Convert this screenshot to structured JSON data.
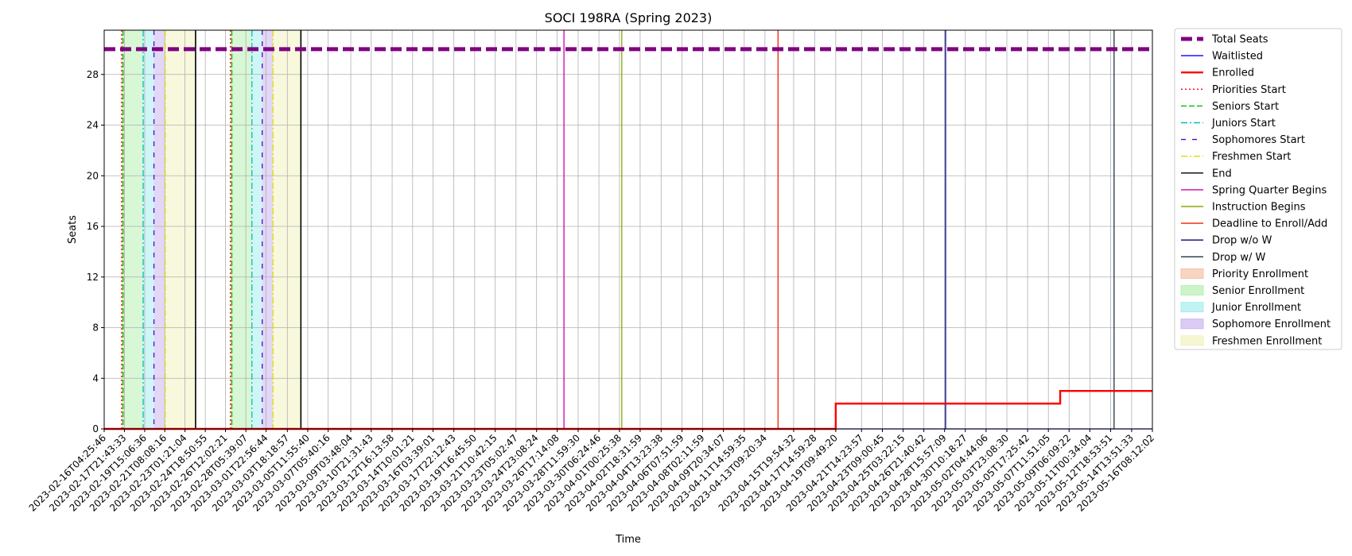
{
  "chart_data": {
    "type": "line",
    "title": "SOCI 198RA (Spring 2023)",
    "xlabel": "Time",
    "ylabel": "Seats",
    "ylim": [
      0,
      31.5
    ],
    "yticks": [
      0,
      4,
      8,
      12,
      16,
      20,
      24,
      28
    ],
    "grid": true,
    "legend_position": "outside right",
    "x_tick_labels": [
      "2023-02-16T04:25:46",
      "2023-02-17T21:43:33",
      "2023-02-19T15:06:36",
      "2023-02-21T08:08:16",
      "2023-02-23T01:21:04",
      "2023-02-24T18:50:55",
      "2023-02-26T12:02:21",
      "2023-02-28T05:39:07",
      "2023-03-01T22:56:44",
      "2023-03-03T18:18:57",
      "2023-03-05T11:55:40",
      "2023-03-07T05:40:16",
      "2023-03-09T03:48:04",
      "2023-03-10T21:31:43",
      "2023-03-12T16:13:58",
      "2023-03-14T10:01:21",
      "2023-03-16T03:39:01",
      "2023-03-17T22:12:43",
      "2023-03-19T16:45:50",
      "2023-03-21T10:42:15",
      "2023-03-23T05:02:47",
      "2023-03-24T23:08:24",
      "2023-03-26T17:14:08",
      "2023-03-28T11:59:30",
      "2023-03-30T06:24:46",
      "2023-04-01T00:25:38",
      "2023-04-02T18:31:59",
      "2023-04-04T13:23:38",
      "2023-04-06T07:51:59",
      "2023-04-08T02:11:59",
      "2023-04-09T20:34:07",
      "2023-04-11T14:59:35",
      "2023-04-13T09:20:34",
      "2023-04-15T19:54:32",
      "2023-04-17T14:59:28",
      "2023-04-19T09:49:20",
      "2023-04-21T14:23:57",
      "2023-04-23T09:00:45",
      "2023-04-25T03:22:15",
      "2023-04-26T21:40:42",
      "2023-04-28T15:57:09",
      "2023-04-30T10:18:27",
      "2023-05-02T04:44:06",
      "2023-05-03T23:08:30",
      "2023-05-05T17:25:42",
      "2023-05-07T11:51:05",
      "2023-05-09T06:09:22",
      "2023-05-11T00:34:04",
      "2023-05-12T18:53:51",
      "2023-05-14T13:51:33",
      "2023-05-16T08:12:02"
    ],
    "series": [
      {
        "name": "Total Seats",
        "color": "#800080",
        "style": "dashed-thick",
        "points": [
          [
            "2023-02-16T04:25:46",
            30
          ],
          [
            "2023-05-16T08:12:02",
            30
          ]
        ]
      },
      {
        "name": "Waitlisted",
        "color": "#0000ff",
        "style": "solid",
        "points": [
          [
            "2023-02-16T04:25:46",
            0
          ],
          [
            "2023-05-16T08:12:02",
            0
          ]
        ]
      },
      {
        "name": "Enrolled",
        "color": "#ff0000",
        "style": "solid-thick",
        "points": [
          [
            "2023-02-16T04:25:46",
            0
          ],
          [
            "2023-04-19T09:49:20",
            0
          ],
          [
            "2023-04-19T09:49:20",
            2
          ],
          [
            "2023-05-08T12:00:00",
            2
          ],
          [
            "2023-05-08T12:00:00",
            3
          ],
          [
            "2023-05-16T08:12:02",
            3
          ]
        ]
      }
    ],
    "events": [
      {
        "name": "Priorities Start",
        "color": "#ff0000",
        "style": "dotted",
        "times": [
          "2023-02-17T16:00:00",
          "2023-02-26T22:00:00"
        ]
      },
      {
        "name": "Seniors Start",
        "color": "#00bb00",
        "style": "dashed",
        "times": [
          "2023-02-17T19:00:00",
          "2023-02-27T01:00:00"
        ]
      },
      {
        "name": "Juniors Start",
        "color": "#00bfbf",
        "style": "dashdot",
        "times": [
          "2023-02-19T12:00:00",
          "2023-02-28T18:00:00"
        ]
      },
      {
        "name": "Sophomores Start",
        "color": "#6000cc",
        "style": "dashed-dot",
        "times": [
          "2023-02-20T10:00:00",
          "2023-03-01T15:00:00"
        ]
      },
      {
        "name": "Freshmen Start",
        "color": "#dddd00",
        "style": "dashdot",
        "times": [
          "2023-02-21T09:00:00",
          "2023-03-02T13:00:00"
        ]
      },
      {
        "name": "End",
        "color": "#000000",
        "style": "solid",
        "times": [
          "2023-02-23T23:00:00",
          "2023-03-04T22:00:00"
        ]
      },
      {
        "name": "Spring Quarter Begins",
        "color": "#cc00aa",
        "style": "solid",
        "times": [
          "2023-03-27T07:00:00"
        ]
      },
      {
        "name": "Instruction Begins",
        "color": "#88aa00",
        "style": "solid",
        "times": [
          "2023-04-01T05:00:00"
        ]
      },
      {
        "name": "Deadline to Enroll/Add",
        "color": "#ee2200",
        "style": "solid",
        "times": [
          "2023-04-14T12:00:00"
        ]
      },
      {
        "name": "Drop w/o W",
        "color": "#000080",
        "style": "solid",
        "times": [
          "2023-04-28T18:00:00"
        ]
      },
      {
        "name": "Drop w/ W",
        "color": "#223344",
        "style": "solid",
        "times": [
          "2023-05-13T02:00:00"
        ]
      }
    ],
    "periods": [
      {
        "name": "Priority Enrollment",
        "color": "#f4c3a8",
        "ranges": [
          [
            "2023-02-17T16:00:00",
            "2023-02-17T19:00:00"
          ],
          [
            "2023-02-26T22:00:00",
            "2023-02-27T01:00:00"
          ]
        ]
      },
      {
        "name": "Senior Enrollment",
        "color": "#b8f0b0",
        "ranges": [
          [
            "2023-02-17T19:00:00",
            "2023-02-19T12:00:00"
          ],
          [
            "2023-02-27T01:00:00",
            "2023-02-28T18:00:00"
          ]
        ]
      },
      {
        "name": "Junior Enrollment",
        "color": "#a8eef0",
        "ranges": [
          [
            "2023-02-19T12:00:00",
            "2023-02-20T10:00:00"
          ],
          [
            "2023-02-28T18:00:00",
            "2023-03-01T15:00:00"
          ]
        ]
      },
      {
        "name": "Sophomore Enrollment",
        "color": "#cbb6f0",
        "ranges": [
          [
            "2023-02-20T10:00:00",
            "2023-02-21T09:00:00"
          ],
          [
            "2023-03-01T15:00:00",
            "2023-03-02T13:00:00"
          ]
        ]
      },
      {
        "name": "Freshmen Enrollment",
        "color": "#f2f2c0",
        "ranges": [
          [
            "2023-02-21T09:00:00",
            "2023-02-23T23:00:00"
          ],
          [
            "2023-03-02T13:00:00",
            "2023-03-04T22:00:00"
          ]
        ]
      }
    ],
    "legend": [
      "Total Seats",
      "Waitlisted",
      "Enrolled",
      "Priorities Start",
      "Seniors Start",
      "Juniors Start",
      "Sophomores Start",
      "Freshmen Start",
      "End",
      "Spring Quarter Begins",
      "Instruction Begins",
      "Deadline to Enroll/Add",
      "Drop w/o W",
      "Drop w/ W",
      "Priority Enrollment",
      "Senior Enrollment",
      "Junior Enrollment",
      "Sophomore Enrollment",
      "Freshmen Enrollment"
    ]
  }
}
